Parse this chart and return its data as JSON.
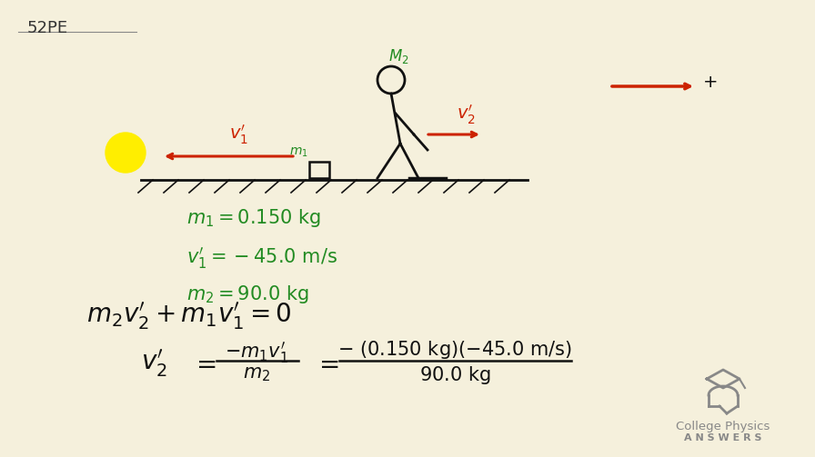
{
  "bg_color": "#f5f0dc",
  "title_text": "52PE",
  "title_color": "#333333",
  "green_color": "#228B22",
  "red_color": "#cc2200",
  "dark_color": "#111111",
  "gray_color": "#888888",
  "yellow_color": "#ffee00",
  "logo_text1": "College Physics",
  "logo_text2": "A N S W E R S"
}
